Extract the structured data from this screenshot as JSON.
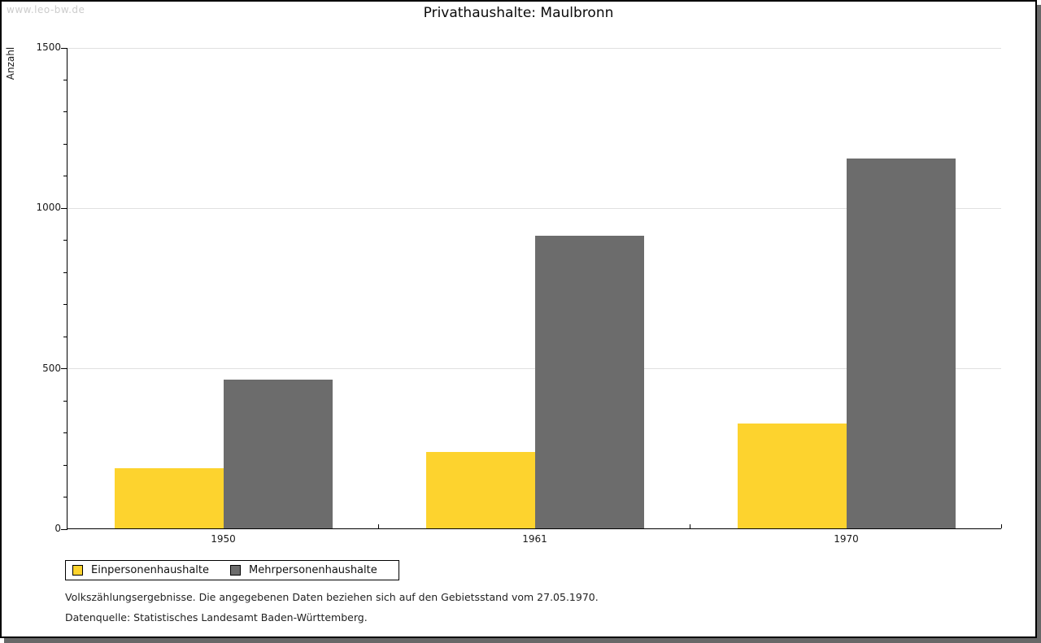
{
  "watermark": "www.leo-bw.de",
  "chart_data": {
    "type": "bar",
    "title": "Privathaushalte: Maulbronn",
    "ylabel": "Anzahl",
    "xlabel": "",
    "categories": [
      "1950",
      "1961",
      "1970"
    ],
    "series": [
      {
        "name": "Einpersonenhaushalte",
        "color": "#fdd32e",
        "values": [
          187,
          238,
          327
        ]
      },
      {
        "name": "Mehrpersonenhaushalte",
        "color": "#6c6c6c",
        "values": [
          464,
          912,
          1153
        ]
      }
    ],
    "ylim": [
      0,
      1500
    ],
    "yticks": [
      0,
      500,
      1000,
      1500
    ],
    "minor_tick_unit": 100,
    "grid": true,
    "gridline_color": "#e0e0e0",
    "legend_position": "bottom-left"
  },
  "legend": {
    "items": [
      "Einpersonenhaushalte",
      "Mehrpersonenhaushalte"
    ]
  },
  "footer": {
    "line1": "Volkszählungsergebnisse. Die angegebenen Daten beziehen sich auf den Gebietsstand vom 27.05.1970.",
    "line2": "Datenquelle: Statistisches Landesamt Baden-Württemberg."
  }
}
